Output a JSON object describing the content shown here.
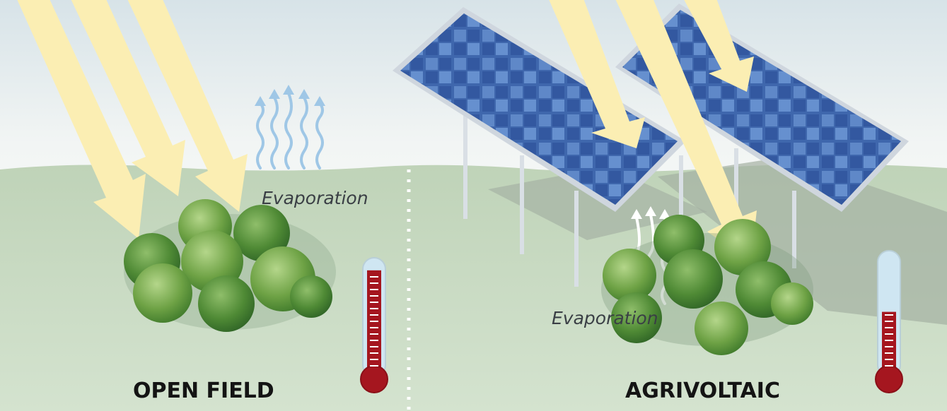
{
  "scenes": {
    "open_field": {
      "title": "OPEN FIELD",
      "evaporation_label": "Evaporation",
      "thermometer_level": 0.92
    },
    "agrivoltaic": {
      "title": "AGRIVOLTAIC",
      "evaporation_label": "Evaporation",
      "thermometer_level": 0.52
    }
  },
  "colors": {
    "sky_top": "#dfe8ec",
    "ground": "#c9dcc2",
    "sun_ray": "#fbeeb0",
    "panel_blue": "#3b63a7",
    "panel_frame": "#cfd6de",
    "shadow": "#9fae9f",
    "plant_green": "#5f9a3f",
    "thermo_red": "#a5161f",
    "thermo_blue": "#cfe6f2",
    "vapor_blue": "#9fc7e6",
    "vapor_white": "#ffffff"
  },
  "icons": [
    "sun-ray-arrow",
    "solar-panel",
    "plant-cluster",
    "vapor-arrow",
    "thermometer-icon"
  ]
}
